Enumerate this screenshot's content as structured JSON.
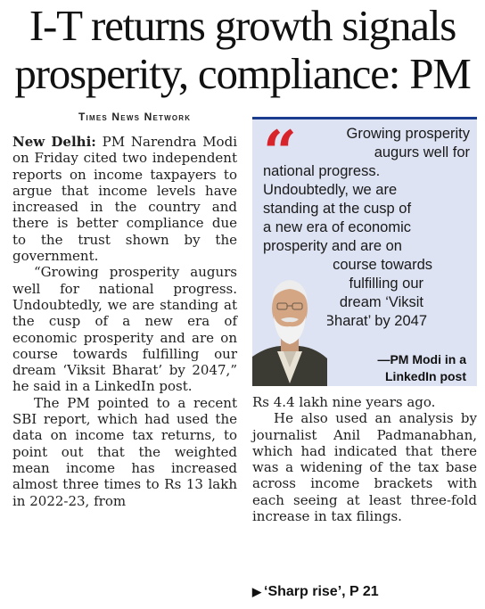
{
  "headline": {
    "line1": "I-T returns growth signals",
    "line2": "prosperity, compliance: PM"
  },
  "byline": "Times News Network",
  "article": {
    "dateline": "New Delhi:",
    "p1": "PM Narendra Modi on Friday cited two independent reports on income taxpayers to argue that income levels have increased in the country and there is better compliance due to the trust shown by the government.",
    "p2": "“Growing prosperity augurs well for national progress. Undoubtedly, we are standing at the cusp of a new era of economic prosperity and are on course towards fulfilling our dream ‘Viksit Bharat’ by 2047,” he said in a LinkedIn post.",
    "p3": "The PM pointed to a recent SBI report, which had used the data on income tax returns, to point out that the weighted mean income has increased almost three times to Rs 13 lakh in 2022-23, from",
    "p3_cont": "Rs 4.4 lakh nine years ago.",
    "p4": "He also used an analysis by journalist Anil Padmanabhan, which had indicated that there was a widening of the tax base across income brackets with each seeing at least three-fold increase in tax filings."
  },
  "pullquote": {
    "mark": "“",
    "lines": [
      "Growing prosperity",
      "augurs well for",
      "national progress.",
      "Undoubtedly, we are",
      "standing at the cusp of",
      "a new era of economic",
      "prosperity and are on",
      "course towards",
      "fulfilling our",
      "dream ‘Viksit",
      "Bharat’ by 2047"
    ],
    "attribution_line1": "—PM Modi in a",
    "attribution_line2": "LinkedIn post",
    "accent_color": "#d8232a",
    "box_color": "#dde3f3"
  },
  "reference": {
    "arrow": "▶",
    "label": "‘Sharp rise’, P 21"
  }
}
